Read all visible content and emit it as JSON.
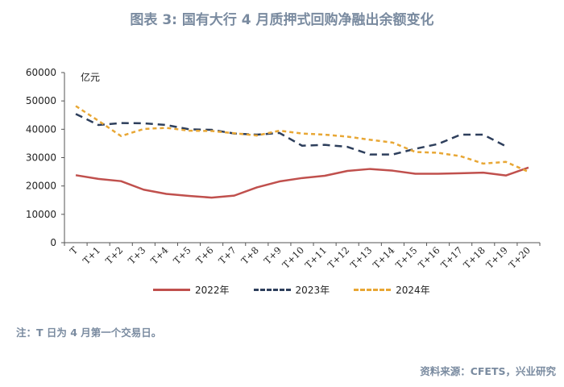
{
  "title": "图表 3:  国有大行 4 月质押式回购净融出余额变化",
  "note": "注：T 日为 4 月第一个交易日。",
  "source": "资料来源：CFETS，兴业研究",
  "chart_data": {
    "type": "line",
    "unit_label": "亿元",
    "ylim": [
      0,
      60000
    ],
    "yticks": [
      "0",
      "10000",
      "20000",
      "30000",
      "40000",
      "50000",
      "60000"
    ],
    "categories": [
      "T",
      "T+1",
      "T+2",
      "T+3",
      "T+4",
      "T+5",
      "T+6",
      "T+7",
      "T+8",
      "T+9",
      "T+10",
      "T+11",
      "T+12",
      "T+13",
      "T+14",
      "T+15",
      "T+16",
      "T+17",
      "T+18",
      "T+19",
      "T+20"
    ],
    "legend_position": "bottom",
    "grid": false,
    "series": [
      {
        "name": "2022年",
        "color": "#c0504d",
        "dash": "solid",
        "values": [
          23800,
          22500,
          21700,
          18700,
          17200,
          16500,
          15900,
          16600,
          19500,
          21600,
          22800,
          23600,
          25300,
          26000,
          25400,
          24300,
          24300,
          24500,
          24700,
          23700,
          26500
        ]
      },
      {
        "name": "2023年",
        "color": "#2e3f5c",
        "dash": "dashed",
        "values": [
          45400,
          41500,
          42200,
          42100,
          41500,
          40000,
          39800,
          38500,
          38100,
          38700,
          34200,
          34500,
          33800,
          31100,
          31100,
          33100,
          34800,
          38100,
          38100,
          34000,
          null
        ]
      },
      {
        "name": "2024年",
        "color": "#e8a735",
        "dash": "dotted",
        "values": [
          48200,
          43000,
          37600,
          40100,
          40500,
          39500,
          39400,
          38600,
          37800,
          39500,
          38500,
          38100,
          37400,
          36300,
          35300,
          32000,
          31700,
          30500,
          27900,
          28500,
          25000
        ]
      }
    ]
  }
}
